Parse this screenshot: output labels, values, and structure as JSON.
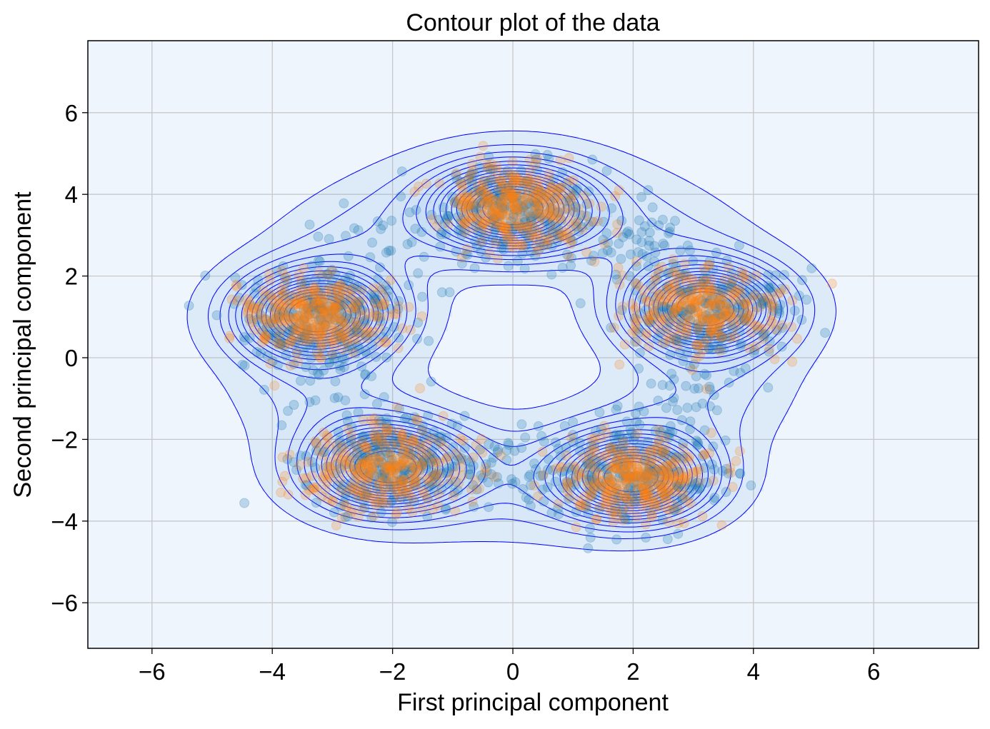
{
  "chart_data": {
    "type": "scatter",
    "title": "Contour plot of the data",
    "xlabel": "First principal component",
    "ylabel": "Second principal component",
    "xlim": [
      -7.2,
      7.7
    ],
    "ylim": [
      -7.2,
      7.7
    ],
    "x_ticks": [
      -6,
      -4,
      -2,
      0,
      2,
      4,
      6
    ],
    "y_ticks": [
      -6,
      -4,
      -2,
      0,
      2,
      4,
      6
    ],
    "x_tick_labels": [
      "−6",
      "−4",
      "−2",
      "0",
      "2",
      "4",
      "6"
    ],
    "y_tick_labels": [
      "−6",
      "−4",
      "−2",
      "0",
      "2",
      "4",
      "6"
    ],
    "grid": true,
    "background_color": "#eef5fd",
    "contour_fill_color": "#4a90d9",
    "contour_line_color": "#0000ff",
    "series_colors": [
      "#1f77b4",
      "#ff7f0e"
    ],
    "clusters": [
      {
        "center": [
          0.0,
          3.65
        ],
        "spread": [
          0.75,
          0.6
        ]
      },
      {
        "center": [
          3.2,
          1.2
        ],
        "spread": [
          0.75,
          0.6
        ]
      },
      {
        "center": [
          2.0,
          -2.95
        ],
        "spread": [
          0.75,
          0.6
        ]
      },
      {
        "center": [
          -2.1,
          -2.7
        ],
        "spread": [
          0.75,
          0.6
        ]
      },
      {
        "center": [
          -3.25,
          1.05
        ],
        "spread": [
          0.75,
          0.6
        ]
      }
    ],
    "ring": {
      "center": [
        0.0,
        0.4
      ],
      "radius": 3.3
    },
    "contour_levels": 16,
    "series": [
      {
        "name": "",
        "color": "#1f77b4",
        "count": 1500
      },
      {
        "name": "",
        "color": "#ff7f0e",
        "count": 1500
      }
    ]
  }
}
